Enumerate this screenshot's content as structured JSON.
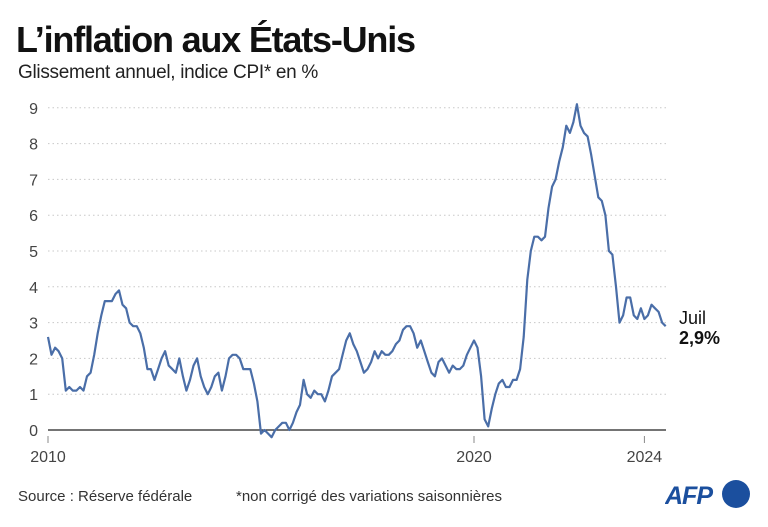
{
  "header": {
    "title": "L’inflation aux États-Unis",
    "subtitle": "Glissement annuel, indice CPI* en %"
  },
  "chart_data": {
    "type": "line",
    "title": "L’inflation aux États-Unis",
    "subtitle": "Glissement annuel, indice CPI* en %",
    "xlabel": "",
    "ylabel": "",
    "x_start": "2010-01",
    "x_end": "2024-07",
    "frequency": "monthly",
    "ylim": [
      0,
      9
    ],
    "y_ticks": [
      "0",
      "1",
      "2",
      "3",
      "4",
      "5",
      "6",
      "7",
      "8",
      "9"
    ],
    "x_ticks": [
      {
        "year": 2010,
        "label": "2010"
      },
      {
        "year": 2020,
        "label": "2020"
      },
      {
        "year": 2024,
        "label": "2024"
      }
    ],
    "grid": "horizontal dotted",
    "line_color": "#4a6ea8",
    "values": [
      2.6,
      2.1,
      2.3,
      2.2,
      2.0,
      1.1,
      1.2,
      1.1,
      1.1,
      1.2,
      1.1,
      1.5,
      1.6,
      2.1,
      2.7,
      3.2,
      3.6,
      3.6,
      3.6,
      3.8,
      3.9,
      3.5,
      3.4,
      3.0,
      2.9,
      2.9,
      2.7,
      2.3,
      1.7,
      1.7,
      1.4,
      1.7,
      2.0,
      2.2,
      1.8,
      1.7,
      1.6,
      2.0,
      1.5,
      1.1,
      1.4,
      1.8,
      2.0,
      1.5,
      1.2,
      1.0,
      1.2,
      1.5,
      1.6,
      1.1,
      1.5,
      2.0,
      2.1,
      2.1,
      2.0,
      1.7,
      1.7,
      1.7,
      1.3,
      0.8,
      -0.1,
      0.0,
      -0.1,
      -0.2,
      0.0,
      0.1,
      0.2,
      0.2,
      0.0,
      0.2,
      0.5,
      0.7,
      1.4,
      1.0,
      0.9,
      1.1,
      1.0,
      1.0,
      0.8,
      1.1,
      1.5,
      1.6,
      1.7,
      2.1,
      2.5,
      2.7,
      2.4,
      2.2,
      1.9,
      1.6,
      1.7,
      1.9,
      2.2,
      2.0,
      2.2,
      2.1,
      2.1,
      2.2,
      2.4,
      2.5,
      2.8,
      2.9,
      2.9,
      2.7,
      2.3,
      2.5,
      2.2,
      1.9,
      1.6,
      1.5,
      1.9,
      2.0,
      1.8,
      1.6,
      1.8,
      1.7,
      1.7,
      1.8,
      2.1,
      2.3,
      2.5,
      2.3,
      1.5,
      0.3,
      0.1,
      0.6,
      1.0,
      1.3,
      1.4,
      1.2,
      1.2,
      1.4,
      1.4,
      1.7,
      2.6,
      4.2,
      5.0,
      5.4,
      5.4,
      5.3,
      5.4,
      6.2,
      6.8,
      7.0,
      7.5,
      7.9,
      8.5,
      8.3,
      8.6,
      9.1,
      8.5,
      8.3,
      8.2,
      7.7,
      7.1,
      6.5,
      6.4,
      6.0,
      5.0,
      4.9,
      4.0,
      3.0,
      3.2,
      3.7,
      3.7,
      3.2,
      3.1,
      3.4,
      3.1,
      3.2,
      3.5,
      3.4,
      3.3,
      3.0,
      2.9
    ],
    "annotation": {
      "month": "Juil",
      "value": "2,9%"
    }
  },
  "footer": {
    "source": "Source : Réserve fédérale",
    "note": "*non corrigé des variations saisonnières",
    "logo_text": "AFP",
    "logo_color": "#1b4f9e"
  }
}
